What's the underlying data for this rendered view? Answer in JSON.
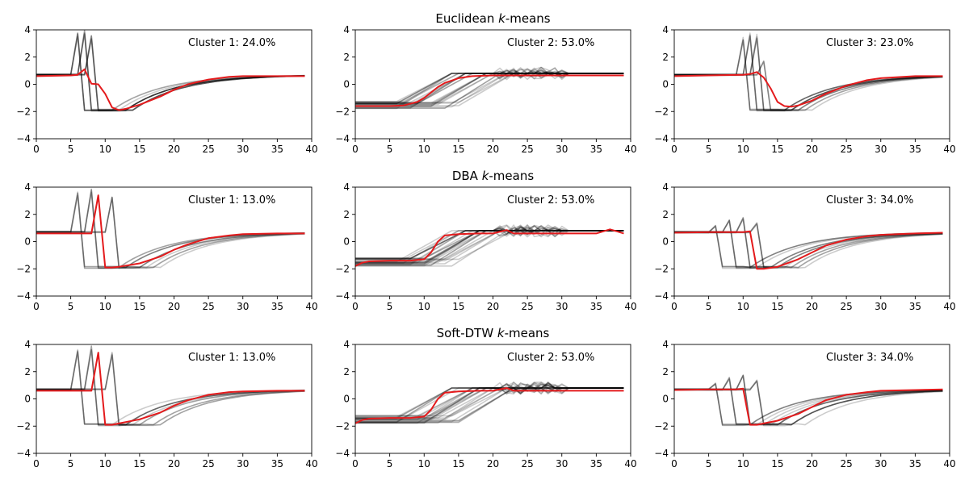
{
  "figure": {
    "colors": {
      "member": "#000000",
      "barycenter": "#e41a1c"
    }
  },
  "chart_data": [
    {
      "type": "line",
      "row_title": {
        "main": "Euclidean ",
        "italic": "k",
        "suffix": "-means"
      },
      "panels": [
        {
          "label": "Cluster 1: 24.0%",
          "xlim": [
            0,
            40
          ],
          "ylim": [
            -4,
            4
          ],
          "xticks": [
            0,
            5,
            10,
            15,
            20,
            25,
            30,
            35,
            40
          ],
          "yticks": [
            -4,
            -2,
            0,
            2,
            4
          ],
          "members": [
            {
              "drop": 7,
              "peak": 3.8,
              "recover": 11,
              "count": 5
            },
            {
              "drop": 8,
              "peak": 4.0,
              "recover": 12,
              "count": 5
            },
            {
              "drop": 9,
              "peak": 3.6,
              "recover": 13,
              "count": 5
            }
          ],
          "barycenter": {
            "x": [
              0,
              5,
              6,
              7,
              8,
              9,
              10,
              11,
              12,
              13,
              15,
              18,
              20,
              22,
              25,
              28,
              30,
              35,
              39
            ],
            "y": [
              0.6,
              0.65,
              0.7,
              1.1,
              0.05,
              0.0,
              -0.7,
              -1.7,
              -1.9,
              -1.8,
              -1.5,
              -0.9,
              -0.4,
              0.0,
              0.35,
              0.55,
              0.6,
              0.6,
              0.6
            ]
          }
        },
        {
          "label": "Cluster 2: 53.0%",
          "xlim": [
            0,
            40
          ],
          "ylim": [
            -4,
            4
          ],
          "xticks": [
            0,
            5,
            10,
            15,
            20,
            25,
            30,
            35,
            40
          ],
          "yticks": [
            -4,
            -2,
            0,
            2,
            4
          ],
          "members": "rising",
          "barycenter": {
            "x": [
              0,
              5,
              7,
              9,
              10,
              11,
              12,
              13,
              15,
              17,
              20,
              25,
              30,
              35,
              39
            ],
            "y": [
              -1.6,
              -1.6,
              -1.55,
              -1.3,
              -1.0,
              -0.6,
              -0.2,
              0.1,
              0.45,
              0.6,
              0.65,
              0.65,
              0.65,
              0.65,
              0.65
            ]
          }
        },
        {
          "label": "Cluster 3: 23.0%",
          "xlim": [
            0,
            40
          ],
          "ylim": [
            -4,
            4
          ],
          "xticks": [
            0,
            5,
            10,
            15,
            20,
            25,
            30,
            35,
            40
          ],
          "yticks": [
            -4,
            -2,
            0,
            2,
            4
          ],
          "members": [
            {
              "drop": 11,
              "peak": 3.6,
              "recover": 15,
              "count": 4
            },
            {
              "drop": 12,
              "peak": 3.8,
              "recover": 16,
              "count": 4
            },
            {
              "drop": 13,
              "peak": 3.7,
              "recover": 17,
              "count": 4
            },
            {
              "drop": 14,
              "peak": 1.8,
              "recover": 18,
              "count": 3
            }
          ],
          "barycenter": {
            "x": [
              0,
              5,
              10,
              11,
              12,
              13,
              14,
              15,
              16,
              17,
              18,
              20,
              22,
              25,
              28,
              30,
              35,
              39
            ],
            "y": [
              0.6,
              0.65,
              0.7,
              0.75,
              0.9,
              0.5,
              -0.3,
              -1.3,
              -1.6,
              -1.65,
              -1.55,
              -1.2,
              -0.7,
              -0.1,
              0.3,
              0.45,
              0.6,
              0.6
            ]
          }
        }
      ]
    },
    {
      "type": "line",
      "row_title": {
        "main": "DBA ",
        "italic": "k",
        "suffix": "-means"
      },
      "panels": [
        {
          "label": "Cluster 1: 13.0%",
          "xlim": [
            0,
            40
          ],
          "ylim": [
            -4,
            4
          ],
          "xticks": [
            0,
            5,
            10,
            15,
            20,
            25,
            30,
            35,
            40
          ],
          "yticks": [
            -4,
            -2,
            0,
            2,
            4
          ],
          "members": [
            {
              "drop": 7,
              "peak": 3.7,
              "recover": 11,
              "count": 4
            },
            {
              "drop": 9,
              "peak": 3.9,
              "recover": 13,
              "count": 4
            },
            {
              "drop": 12,
              "peak": 3.5,
              "recover": 16,
              "count": 4
            }
          ],
          "barycenter": {
            "x": [
              0,
              5,
              8,
              9,
              10,
              11,
              12,
              15,
              18,
              20,
              22,
              25,
              28,
              30,
              35,
              39
            ],
            "y": [
              0.6,
              0.6,
              0.6,
              3.4,
              -1.9,
              -1.9,
              -1.85,
              -1.6,
              -1.1,
              -0.6,
              -0.2,
              0.25,
              0.45,
              0.55,
              0.6,
              0.6
            ]
          }
        },
        {
          "label": "Cluster 2: 53.0%",
          "xlim": [
            0,
            40
          ],
          "ylim": [
            -4,
            4
          ],
          "xticks": [
            0,
            5,
            10,
            15,
            20,
            25,
            30,
            35,
            40
          ],
          "yticks": [
            -4,
            -2,
            0,
            2,
            4
          ],
          "members": "rising",
          "barycenter": {
            "x": [
              0,
              1,
              2,
              5,
              8,
              10,
              11,
              12,
              13,
              15,
              18,
              20,
              22,
              23,
              25,
              30,
              35,
              37,
              39
            ],
            "y": [
              -1.8,
              -1.55,
              -1.45,
              -1.4,
              -1.4,
              -1.3,
              -0.8,
              0.0,
              0.45,
              0.55,
              0.6,
              0.6,
              0.85,
              0.6,
              0.6,
              0.6,
              0.6,
              0.9,
              0.6
            ]
          }
        },
        {
          "label": "Cluster 3: 34.0%",
          "xlim": [
            0,
            40
          ],
          "ylim": [
            -4,
            4
          ],
          "xticks": [
            0,
            5,
            10,
            15,
            20,
            25,
            30,
            35,
            40
          ],
          "yticks": [
            -4,
            -2,
            0,
            2,
            4
          ],
          "members": [
            {
              "drop": 7,
              "peak": 1.2,
              "recover": 11,
              "count": 4
            },
            {
              "drop": 9,
              "peak": 1.6,
              "recover": 13,
              "count": 4
            },
            {
              "drop": 11,
              "peak": 1.8,
              "recover": 15,
              "count": 4
            },
            {
              "drop": 13,
              "peak": 1.4,
              "recover": 17,
              "count": 4
            }
          ],
          "barycenter": {
            "x": [
              0,
              5,
              10,
              11,
              12,
              13,
              15,
              18,
              20,
              22,
              25,
              28,
              30,
              35,
              39
            ],
            "y": [
              0.65,
              0.7,
              0.7,
              0.75,
              -2.0,
              -2.0,
              -1.85,
              -1.3,
              -0.8,
              -0.3,
              0.15,
              0.4,
              0.5,
              0.6,
              0.65
            ]
          }
        }
      ]
    },
    {
      "type": "line",
      "row_title": {
        "main": "Soft-DTW ",
        "italic": "k",
        "suffix": "-means"
      },
      "panels": [
        {
          "label": "Cluster 1: 13.0%",
          "xlim": [
            0,
            40
          ],
          "ylim": [
            -4,
            4
          ],
          "xticks": [
            0,
            5,
            10,
            15,
            20,
            25,
            30,
            35,
            40
          ],
          "yticks": [
            -4,
            -2,
            0,
            2,
            4
          ],
          "members": [
            {
              "drop": 7,
              "peak": 3.7,
              "recover": 11,
              "count": 4
            },
            {
              "drop": 9,
              "peak": 3.9,
              "recover": 13,
              "count": 4
            },
            {
              "drop": 12,
              "peak": 3.5,
              "recover": 16,
              "count": 4
            }
          ],
          "barycenter": {
            "x": [
              0,
              5,
              8,
              9,
              10,
              11,
              12,
              15,
              18,
              20,
              22,
              25,
              28,
              30,
              35,
              39
            ],
            "y": [
              0.6,
              0.6,
              0.6,
              3.4,
              -1.9,
              -1.9,
              -1.8,
              -1.5,
              -1.0,
              -0.5,
              -0.1,
              0.3,
              0.5,
              0.55,
              0.6,
              0.6
            ]
          }
        },
        {
          "label": "Cluster 2: 53.0%",
          "xlim": [
            0,
            40
          ],
          "ylim": [
            -4,
            4
          ],
          "xticks": [
            0,
            5,
            10,
            15,
            20,
            25,
            30,
            35,
            40
          ],
          "yticks": [
            -4,
            -2,
            0,
            2,
            4
          ],
          "members": "rising",
          "barycenter": {
            "x": [
              0,
              1,
              2,
              5,
              8,
              10,
              11,
              12,
              13,
              15,
              18,
              20,
              22,
              23,
              25,
              30,
              35,
              39
            ],
            "y": [
              -1.8,
              -1.55,
              -1.45,
              -1.4,
              -1.4,
              -1.3,
              -0.8,
              0.0,
              0.45,
              0.55,
              0.6,
              0.6,
              0.8,
              0.6,
              0.6,
              0.6,
              0.6,
              0.6
            ]
          }
        },
        {
          "label": "Cluster 3: 34.0%",
          "xlim": [
            0,
            40
          ],
          "ylim": [
            -4,
            4
          ],
          "xticks": [
            0,
            5,
            10,
            15,
            20,
            25,
            30,
            35,
            40
          ],
          "yticks": [
            -4,
            -2,
            0,
            2,
            4
          ],
          "members": [
            {
              "drop": 7,
              "peak": 1.2,
              "recover": 11,
              "count": 4
            },
            {
              "drop": 9,
              "peak": 1.6,
              "recover": 13,
              "count": 4
            },
            {
              "drop": 11,
              "peak": 1.8,
              "recover": 15,
              "count": 4
            },
            {
              "drop": 13,
              "peak": 1.4,
              "recover": 17,
              "count": 4
            }
          ],
          "barycenter": {
            "x": [
              0,
              5,
              9,
              10,
              11,
              12,
              13,
              15,
              18,
              20,
              22,
              25,
              28,
              30,
              35,
              39
            ],
            "y": [
              0.65,
              0.7,
              0.7,
              0.75,
              -1.9,
              -1.9,
              -1.8,
              -1.6,
              -1.1,
              -0.6,
              -0.1,
              0.3,
              0.5,
              0.6,
              0.65,
              0.7
            ]
          }
        }
      ]
    }
  ]
}
